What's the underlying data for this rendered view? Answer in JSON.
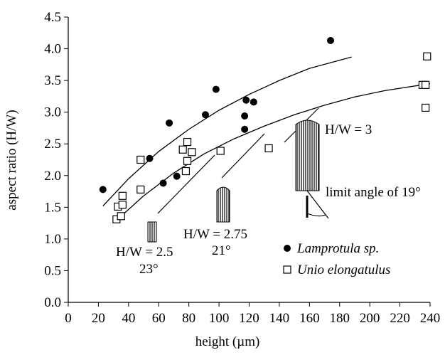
{
  "chart_data": {
    "type": "scatter",
    "xlabel": "height (µm)",
    "ylabel": "aspect ratio (H/W)",
    "xlim": [
      0,
      240
    ],
    "ylim": [
      0,
      4.5
    ],
    "xticks": [
      0,
      20,
      40,
      60,
      80,
      100,
      120,
      140,
      160,
      180,
      200,
      220,
      240
    ],
    "yticks": [
      {
        "value": 0,
        "label": "0.0"
      },
      0.5,
      {
        "value": 1,
        "label": "1.0"
      },
      1.5,
      {
        "value": 2,
        "label": "2.0"
      },
      2.5,
      {
        "value": 3,
        "label": "3.0"
      },
      3.5,
      {
        "value": 4,
        "label": "4.0"
      },
      4.5
    ],
    "legend": "lower right",
    "series": [
      {
        "name": "Lamprotula sp.",
        "marker": "circle",
        "color": "#000000",
        "x": [
          23,
          54,
          63,
          72,
          67,
          91,
          98,
          118,
          117,
          117,
          123,
          174
        ],
        "values": [
          1.78,
          2.27,
          1.88,
          1.99,
          2.83,
          2.96,
          3.36,
          3.19,
          2.94,
          2.73,
          3.16,
          4.13
        ]
      },
      {
        "name": "Unio elongatulus",
        "marker": "square",
        "color": "#000000",
        "x": [
          32,
          33,
          35,
          36,
          36,
          48,
          48,
          76,
          78,
          79,
          79,
          82,
          101,
          133,
          235,
          237,
          237,
          238
        ],
        "values": [
          1.31,
          1.51,
          1.36,
          1.54,
          1.68,
          1.78,
          2.25,
          2.41,
          2.07,
          2.23,
          2.53,
          2.37,
          2.39,
          2.43,
          3.43,
          3.07,
          3.43,
          3.88
        ]
      }
    ],
    "curves": [
      {
        "x": [
          23,
          40,
          60,
          80,
          100,
          120,
          140,
          160,
          188
        ],
        "values": [
          1.52,
          1.95,
          2.38,
          2.73,
          3.03,
          3.28,
          3.5,
          3.69,
          3.87
        ]
      },
      {
        "x": [
          30,
          50,
          70,
          90,
          110,
          130,
          150,
          170,
          190,
          210,
          240
        ],
        "values": [
          1.25,
          1.68,
          2.04,
          2.34,
          2.58,
          2.78,
          2.96,
          3.11,
          3.24,
          3.34,
          3.45
        ]
      }
    ],
    "annotations": [
      "H/W = 3",
      "limit angle of 19°",
      "H/W = 2.75",
      "21°",
      "H/W = 2.5",
      "23°"
    ]
  }
}
